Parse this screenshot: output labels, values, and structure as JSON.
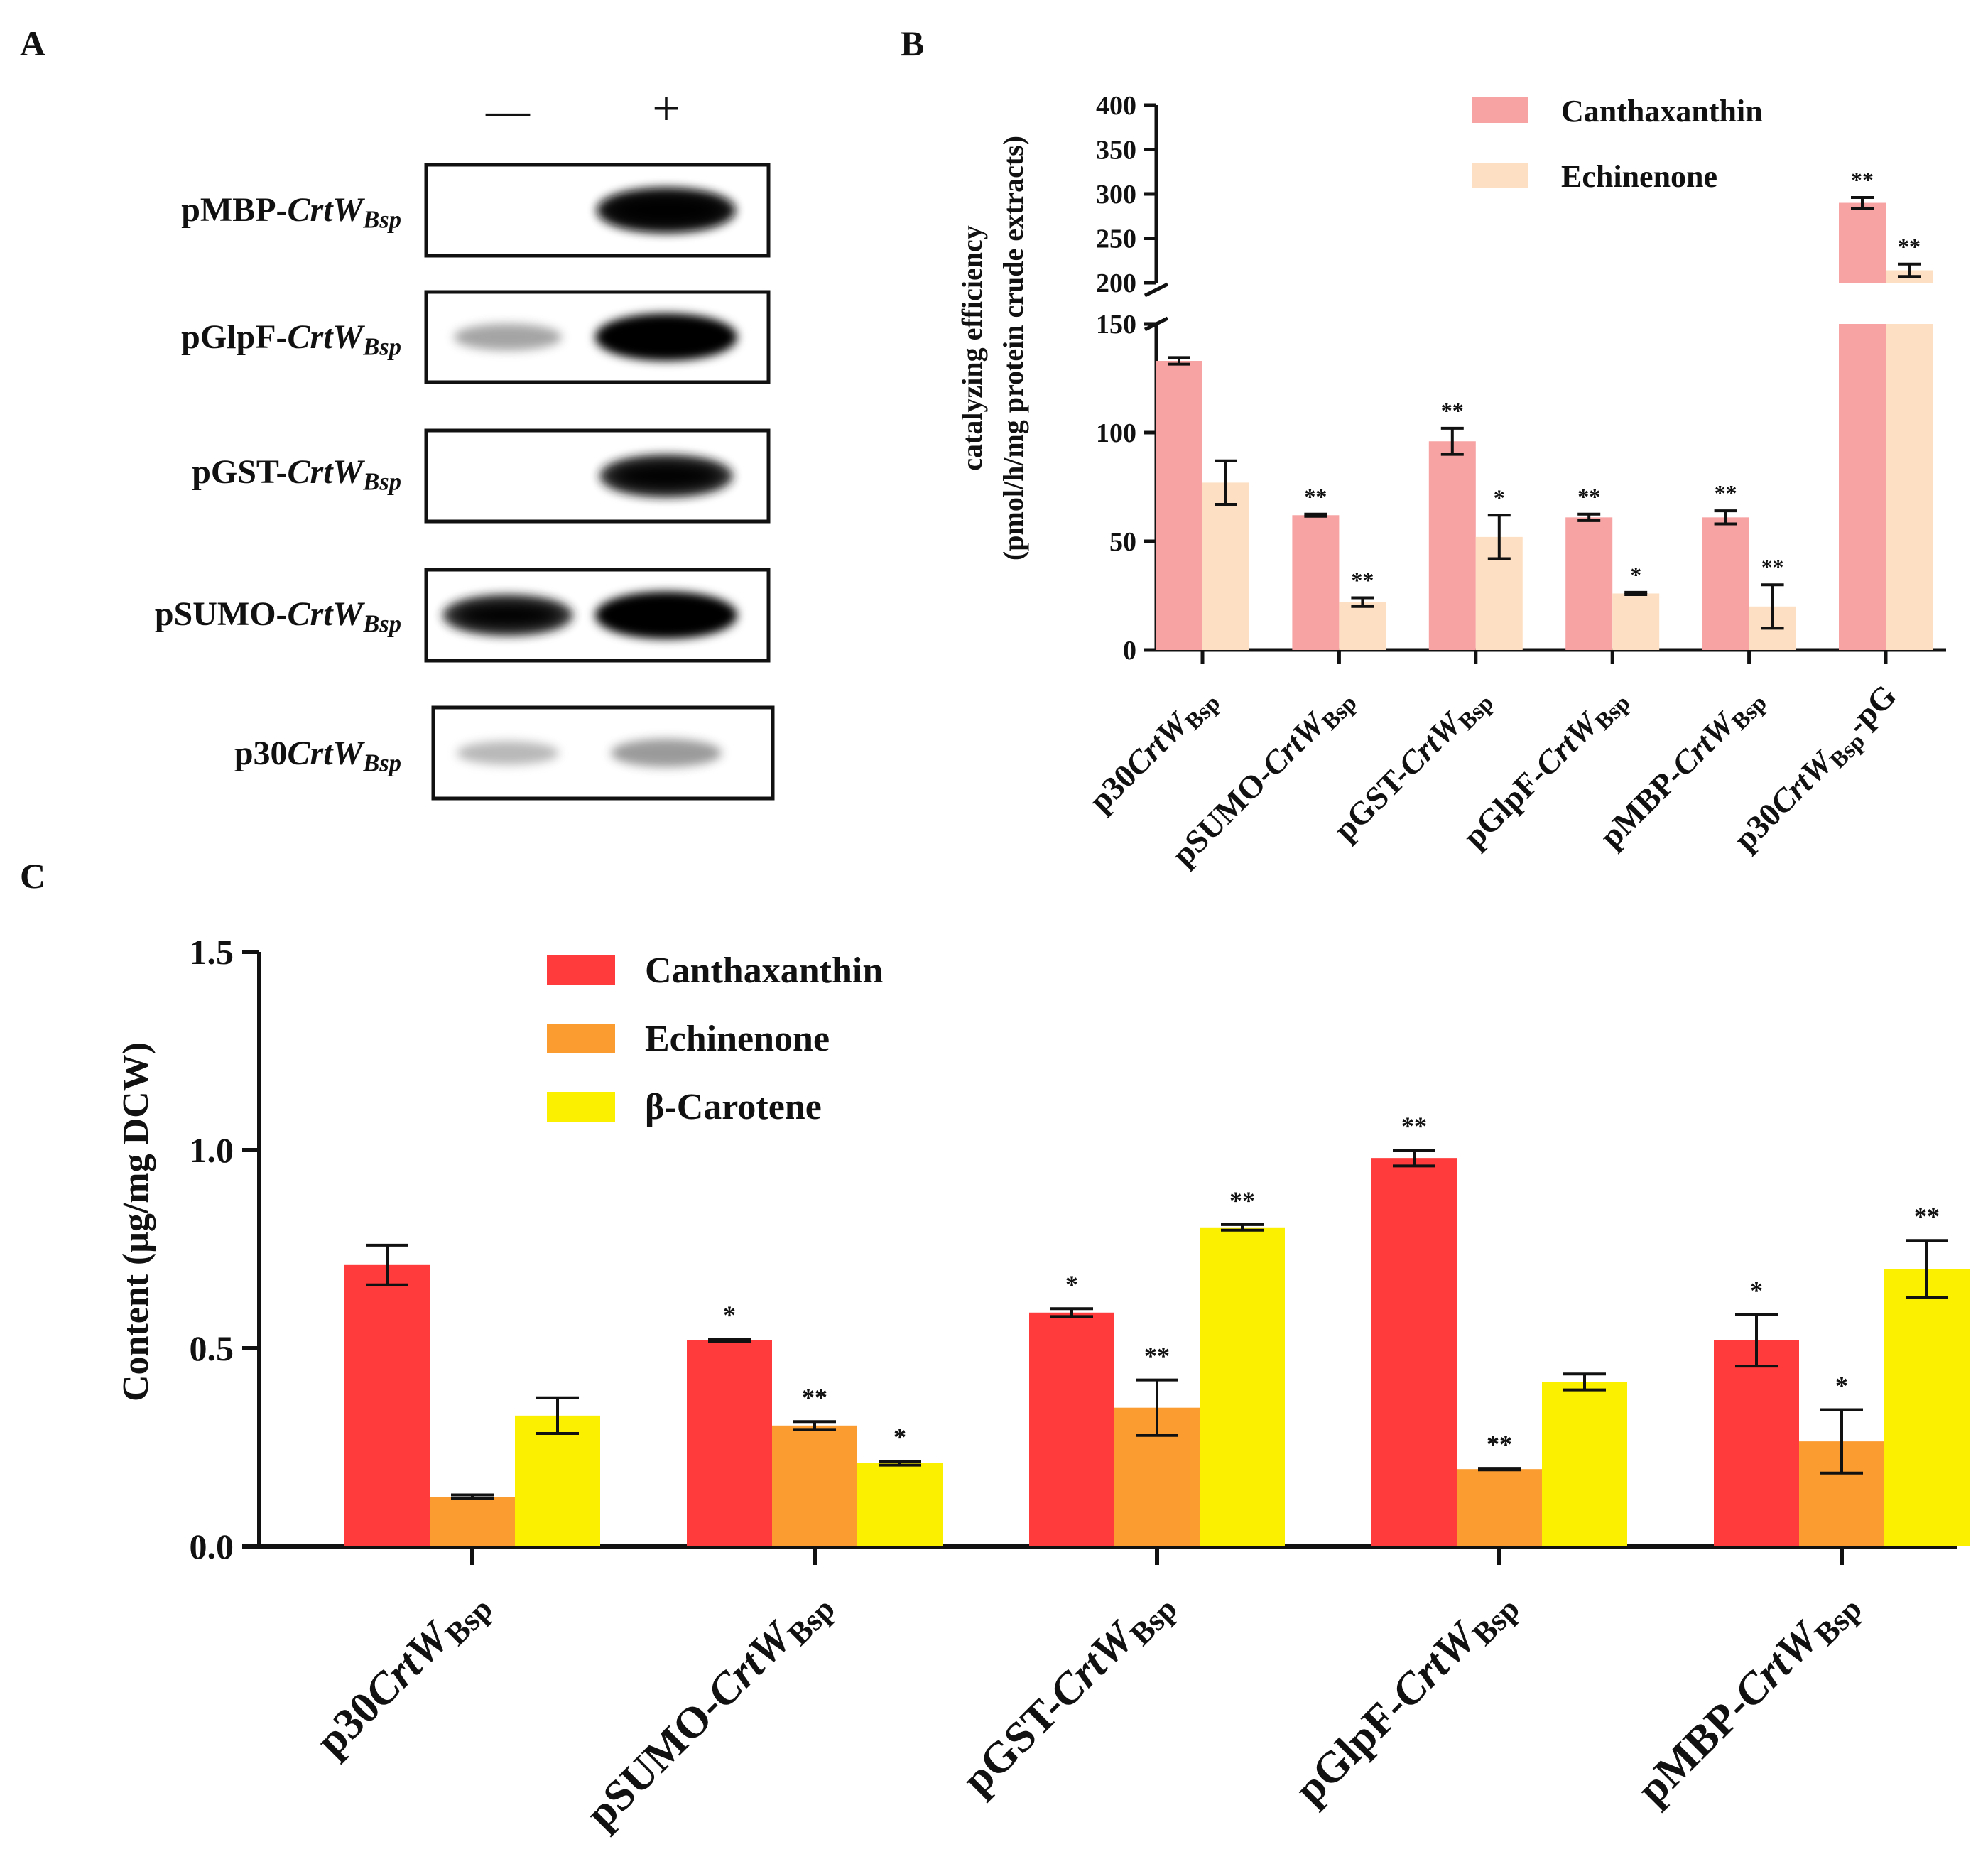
{
  "panel_labels": {
    "a": "A",
    "b": "B",
    "c": "C"
  },
  "blot": {
    "minus_symbol": "—",
    "plus_symbol": "+",
    "rows": [
      {
        "prefix": "pMBP-",
        "gene": "CrtW",
        "sub": "Bsp",
        "minus_band": 0.0,
        "plus_band": 0.95
      },
      {
        "prefix": "pGlpF-",
        "gene": "CrtW",
        "sub": "Bsp",
        "minus_band": 0.4,
        "plus_band": 1.0
      },
      {
        "prefix": "pGST-",
        "gene": "CrtW",
        "sub": "Bsp",
        "minus_band": 0.0,
        "plus_band": 0.85
      },
      {
        "prefix": "pSUMO-",
        "gene": "CrtW",
        "sub": "Bsp",
        "minus_band": 0.8,
        "plus_band": 1.0
      },
      {
        "prefix": "p30",
        "gene": "CrtW",
        "sub": "Bsp",
        "minus_band": 0.3,
        "plus_band": 0.45
      }
    ]
  },
  "colors": {
    "b_canthaxanthin": "#f7a3a3",
    "b_echinenone": "#fde0c3",
    "c_canthaxanthin": "#ff3b3b",
    "c_echinenone": "#fb9c30",
    "c_beta_carotene": "#fbf000"
  },
  "chart_data": [
    {
      "id": "B",
      "type": "bar",
      "ylabel_line1": "catalyzing efficiency",
      "ylabel_line2": "(pmol/h/mg protein crude extracts)",
      "axis_break": [
        150,
        200
      ],
      "ylim_lower": [
        0,
        150
      ],
      "ylim_upper": [
        200,
        400
      ],
      "yticks_lower": [
        "0",
        "50",
        "100",
        "150"
      ],
      "yticks_upper": [
        "200",
        "250",
        "300",
        "350",
        "400"
      ],
      "categories": [
        {
          "prefix": "p30",
          "gene": "CrtW",
          "sub": "Bsp",
          "suffix": ""
        },
        {
          "prefix": "pSUMO-",
          "gene": "CrtW",
          "sub": "Bsp",
          "suffix": ""
        },
        {
          "prefix": "pGST-",
          "gene": "CrtW",
          "sub": "Bsp",
          "suffix": ""
        },
        {
          "prefix": "pGlpF-",
          "gene": "CrtW",
          "sub": "Bsp",
          "suffix": ""
        },
        {
          "prefix": "pMBP-",
          "gene": "CrtW",
          "sub": "Bsp",
          "suffix": ""
        },
        {
          "prefix": "p30",
          "gene": "CrtW",
          "sub": "Bsp",
          "suffix": "-pG"
        }
      ],
      "series": [
        {
          "name": "Canthaxanthin",
          "values": [
            133,
            62,
            96,
            61,
            61,
            290
          ],
          "errors": [
            1.5,
            0.5,
            6,
            1.5,
            3,
            6
          ],
          "sig": [
            "",
            "**",
            "**",
            "**",
            "**",
            "**"
          ]
        },
        {
          "name": "Echinenone",
          "values": [
            77,
            22,
            52,
            26,
            20,
            214
          ],
          "errors": [
            10,
            2,
            10,
            0.5,
            10,
            7
          ],
          "sig": [
            "",
            "**",
            "*",
            "*",
            "**",
            "**"
          ]
        }
      ],
      "legend_position": "top-right"
    },
    {
      "id": "C",
      "type": "bar",
      "ylabel": "Content (μg/mg DCW)",
      "ylim": [
        0,
        1.5
      ],
      "yticks": [
        "0.0",
        "0.5",
        "1.0",
        "1.5"
      ],
      "categories": [
        {
          "prefix": "p30",
          "gene": "CrtW",
          "sub": "Bsp"
        },
        {
          "prefix": "pSUMO-",
          "gene": "CrtW",
          "sub": "Bsp"
        },
        {
          "prefix": "pGST-",
          "gene": "CrtW",
          "sub": "Bsp"
        },
        {
          "prefix": "pGlpF-",
          "gene": "CrtW",
          "sub": "Bsp"
        },
        {
          "prefix": "pMBP-",
          "gene": "CrtW",
          "sub": "Bsp"
        }
      ],
      "series": [
        {
          "name": "Canthaxanthin",
          "values": [
            0.71,
            0.52,
            0.59,
            0.98,
            0.52
          ],
          "errors": [
            0.05,
            0.003,
            0.01,
            0.02,
            0.065
          ],
          "sig": [
            "",
            "*",
            "*",
            "**",
            "*"
          ]
        },
        {
          "name": "Echinenone",
          "values": [
            0.125,
            0.305,
            0.35,
            0.195,
            0.265
          ],
          "errors": [
            0.005,
            0.01,
            0.07,
            0.002,
            0.08
          ],
          "sig": [
            "",
            "**",
            "**",
            "**",
            "*"
          ]
        },
        {
          "name": "β-Carotene",
          "values": [
            0.33,
            0.21,
            0.805,
            0.415,
            0.7
          ],
          "errors": [
            0.045,
            0.005,
            0.007,
            0.02,
            0.072
          ],
          "sig": [
            "",
            "*",
            "**",
            "",
            "**"
          ]
        }
      ],
      "legend_position": "top-left"
    }
  ]
}
